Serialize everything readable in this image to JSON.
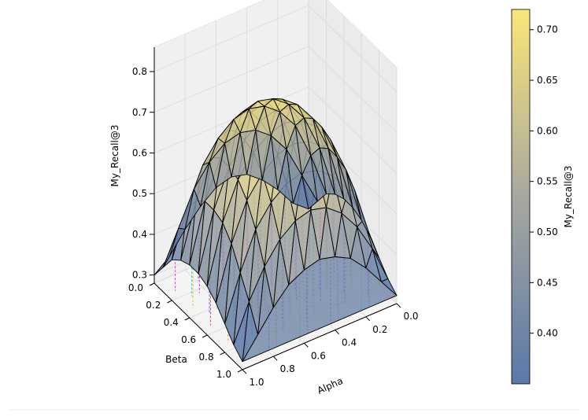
{
  "chart_data": {
    "type": "surface3d",
    "title": "",
    "xlabel": "Alpha",
    "ylabel": "Beta",
    "zlabel": "My_Recall@3",
    "x_ticks": [
      "0.0",
      "0.2",
      "0.4",
      "0.6",
      "0.8",
      "1.0"
    ],
    "y_ticks": [
      "0.0",
      "0.2",
      "0.4",
      "0.6",
      "0.8",
      "1.0"
    ],
    "z_ticks": [
      "0.3",
      "0.4",
      "0.5",
      "0.6",
      "0.7",
      "0.8"
    ],
    "xlim": [
      0,
      1
    ],
    "ylim": [
      0,
      1
    ],
    "zlim": [
      0.28,
      0.86
    ],
    "grid": true,
    "surface": {
      "alpha": [
        0.0,
        0.1,
        0.2,
        0.3,
        0.4,
        0.5,
        0.6,
        0.7,
        0.8,
        0.9,
        1.0
      ],
      "beta": [
        0.0,
        0.1,
        0.2,
        0.3,
        0.4,
        0.5,
        0.6,
        0.7,
        0.8,
        0.9,
        1.0
      ],
      "z": [
        [
          0.3,
          0.33,
          0.38,
          0.42,
          0.45,
          0.46,
          0.45,
          0.42,
          0.38,
          0.33,
          0.3
        ],
        [
          0.34,
          0.42,
          0.5,
          0.55,
          0.58,
          0.59,
          0.58,
          0.55,
          0.5,
          0.42,
          0.34
        ],
        [
          0.38,
          0.49,
          0.58,
          0.63,
          0.66,
          0.67,
          0.66,
          0.63,
          0.58,
          0.49,
          0.38
        ],
        [
          0.4,
          0.53,
          0.62,
          0.67,
          0.7,
          0.71,
          0.7,
          0.67,
          0.62,
          0.53,
          0.4
        ],
        [
          0.41,
          0.55,
          0.64,
          0.69,
          0.72,
          0.73,
          0.72,
          0.69,
          0.64,
          0.55,
          0.41
        ],
        [
          0.41,
          0.55,
          0.64,
          0.69,
          0.72,
          0.73,
          0.72,
          0.69,
          0.64,
          0.55,
          0.41
        ],
        [
          0.4,
          0.54,
          0.63,
          0.68,
          0.71,
          0.72,
          0.71,
          0.68,
          0.63,
          0.54,
          0.4
        ],
        [
          0.38,
          0.51,
          0.6,
          0.65,
          0.68,
          0.69,
          0.68,
          0.65,
          0.6,
          0.51,
          0.38
        ],
        [
          0.35,
          0.46,
          0.55,
          0.6,
          0.63,
          0.64,
          0.63,
          0.6,
          0.55,
          0.46,
          0.35
        ],
        [
          0.32,
          0.41,
          0.48,
          0.53,
          0.56,
          0.57,
          0.56,
          0.53,
          0.48,
          0.41,
          0.32
        ],
        [
          0.3,
          0.35,
          0.4,
          0.44,
          0.46,
          0.47,
          0.46,
          0.44,
          0.4,
          0.35,
          0.3
        ]
      ]
    },
    "drop_lines": true,
    "drop_line_colors": [
      "#e03be0",
      "#3ad2e0",
      "#c8d23a",
      "#3a8ae0",
      "#e0475f",
      "#4fe05a",
      "#e0a03a",
      "#9b3ae0"
    ],
    "colorbar": {
      "label": "My_Recall@3",
      "min": 0.35,
      "max": 0.72,
      "ticks": [
        "0.40",
        "0.45",
        "0.50",
        "0.55",
        "0.60",
        "0.65",
        "0.70"
      ],
      "tick_values": [
        0.4,
        0.45,
        0.5,
        0.55,
        0.6,
        0.65,
        0.7
      ],
      "colormap_low": "#5a78a8",
      "colormap_mid": "#a8a8a0",
      "colormap_high": "#fae678"
    },
    "surface_alpha": 0.85,
    "edge_color": "#000000"
  }
}
